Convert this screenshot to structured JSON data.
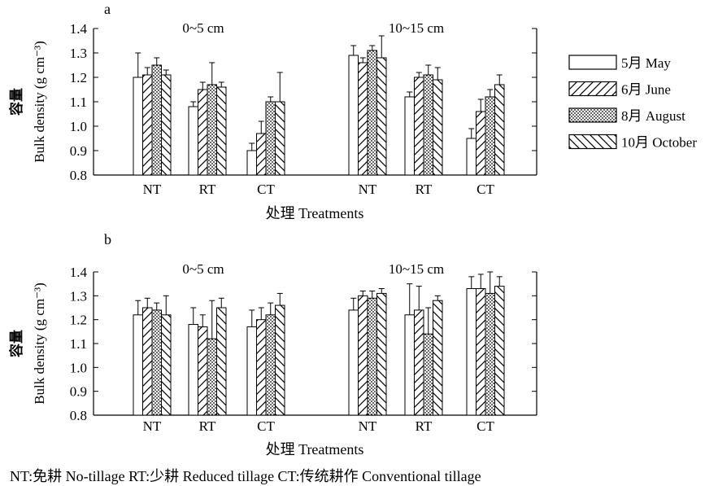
{
  "footnote": "NT:免耕 No-tillage RT:少耕 Reduced tillage CT:传统耕作 Conventional tillage",
  "legend": [
    {
      "label": "5月 May",
      "pattern": "blank"
    },
    {
      "label": "6月 June",
      "pattern": "forward-hatch"
    },
    {
      "label": "8月 August",
      "pattern": "dots"
    },
    {
      "label": "10月 October",
      "pattern": "back-hatch"
    }
  ],
  "chart_data": [
    {
      "type": "bar",
      "panel": "a",
      "title": "",
      "groups": [
        "0~5 cm",
        "10~15 cm"
      ],
      "categories": [
        "NT",
        "RT",
        "CT",
        "NT",
        "RT",
        "CT"
      ],
      "xlabel": "处理 Treatments",
      "ylabel": "Bulk density (g cm⁻³)",
      "ylabel_cn": "容量",
      "ylim": [
        0.8,
        1.4
      ],
      "yticks": [
        "0.8",
        "0.9",
        "1.0",
        "1.1",
        "1.2",
        "1.3",
        "1.4"
      ],
      "series": [
        {
          "name": "5月 May",
          "values": [
            1.2,
            1.08,
            0.9,
            1.29,
            1.12,
            0.95
          ],
          "errors": [
            0.1,
            0.02,
            0.03,
            0.04,
            0.02,
            0.04
          ]
        },
        {
          "name": "6月 June",
          "values": [
            1.21,
            1.15,
            0.97,
            1.26,
            1.2,
            1.06
          ],
          "errors": [
            0.03,
            0.03,
            0.05,
            0.02,
            0.02,
            0.05
          ]
        },
        {
          "name": "8月 August",
          "values": [
            1.25,
            1.17,
            1.1,
            1.31,
            1.21,
            1.12
          ],
          "errors": [
            0.03,
            0.09,
            0.02,
            0.02,
            0.04,
            0.03
          ]
        },
        {
          "name": "10月 October",
          "values": [
            1.21,
            1.16,
            1.1,
            1.28,
            1.19,
            1.17
          ],
          "errors": [
            0.02,
            0.02,
            0.12,
            0.09,
            0.05,
            0.04
          ]
        }
      ]
    },
    {
      "type": "bar",
      "panel": "b",
      "title": "",
      "groups": [
        "0~5 cm",
        "10~15 cm"
      ],
      "categories": [
        "NT",
        "RT",
        "CT",
        "NT",
        "RT",
        "CT"
      ],
      "xlabel": "处理 Treatments",
      "ylabel": "Bulk density (g cm⁻³)",
      "ylabel_cn": "容量",
      "ylim": [
        0.8,
        1.4
      ],
      "yticks": [
        "0.8",
        "0.9",
        "1.0",
        "1.1",
        "1.2",
        "1.3",
        "1.4"
      ],
      "series": [
        {
          "name": "5月 May",
          "values": [
            1.22,
            1.18,
            1.17,
            1.24,
            1.22,
            1.33
          ],
          "errors": [
            0.06,
            0.07,
            0.07,
            0.05,
            0.13,
            0.05
          ]
        },
        {
          "name": "6月 June",
          "values": [
            1.25,
            1.17,
            1.2,
            1.3,
            1.24,
            1.33
          ],
          "errors": [
            0.04,
            0.05,
            0.05,
            0.02,
            0.1,
            0.06
          ]
        },
        {
          "name": "8月 August",
          "values": [
            1.24,
            1.12,
            1.22,
            1.29,
            1.14,
            1.31
          ],
          "errors": [
            0.03,
            0.16,
            0.05,
            0.03,
            0.11,
            0.09
          ]
        },
        {
          "name": "10月 October",
          "values": [
            1.22,
            1.25,
            1.26,
            1.31,
            1.28,
            1.34
          ],
          "errors": [
            0.08,
            0.04,
            0.05,
            0.02,
            0.02,
            0.04
          ]
        }
      ]
    }
  ]
}
